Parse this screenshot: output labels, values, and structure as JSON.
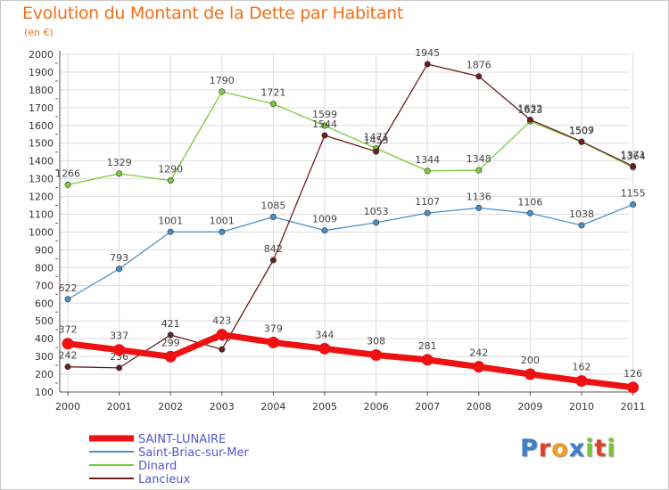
{
  "page": {
    "title": "Evolution du Montant de la Dette par Habitant",
    "subtitle": "(en €)",
    "brand": "Proxiti"
  },
  "colors": {
    "title": "#f07018",
    "grid": "#dddddd",
    "legend_text": "#5555cc"
  },
  "chart_data": {
    "type": "line",
    "title": "Evolution du Montant de la Dette par Habitant",
    "ylabel": "(en €)",
    "xlabel": "",
    "categories": [
      "2000",
      "2001",
      "2002",
      "2003",
      "2004",
      "2005",
      "2006",
      "2007",
      "2008",
      "2009",
      "2010",
      "2011"
    ],
    "ylim": [
      100,
      2000
    ],
    "yticks": [
      100,
      200,
      300,
      400,
      500,
      600,
      700,
      800,
      900,
      1000,
      1100,
      1200,
      1300,
      1400,
      1500,
      1600,
      1700,
      1800,
      1900,
      2000
    ],
    "grid": true,
    "legend": "bottom-left",
    "series": [
      {
        "name": "SAINT-LUNAIRE",
        "color": "#ee1111",
        "values": [
          372,
          337,
          299,
          423,
          379,
          344,
          308,
          281,
          242,
          200,
          162,
          126
        ]
      },
      {
        "name": "Saint-Briac-sur-Mer",
        "color": "#4a90c8",
        "values": [
          622,
          793,
          1001,
          1001,
          1085,
          1009,
          1053,
          1107,
          1136,
          1106,
          1038,
          1155
        ]
      },
      {
        "name": "Dinard",
        "color": "#7ccc3c",
        "values": [
          1266,
          1329,
          1290,
          1790,
          1721,
          1599,
          1471,
          1344,
          1348,
          1623,
          1507,
          1364
        ]
      },
      {
        "name": "Lancieux",
        "color": "#6b1e1e",
        "values": [
          242,
          236,
          421,
          340,
          842,
          1544,
          1453,
          1945,
          1876,
          1632,
          1509,
          1371
        ]
      }
    ]
  }
}
